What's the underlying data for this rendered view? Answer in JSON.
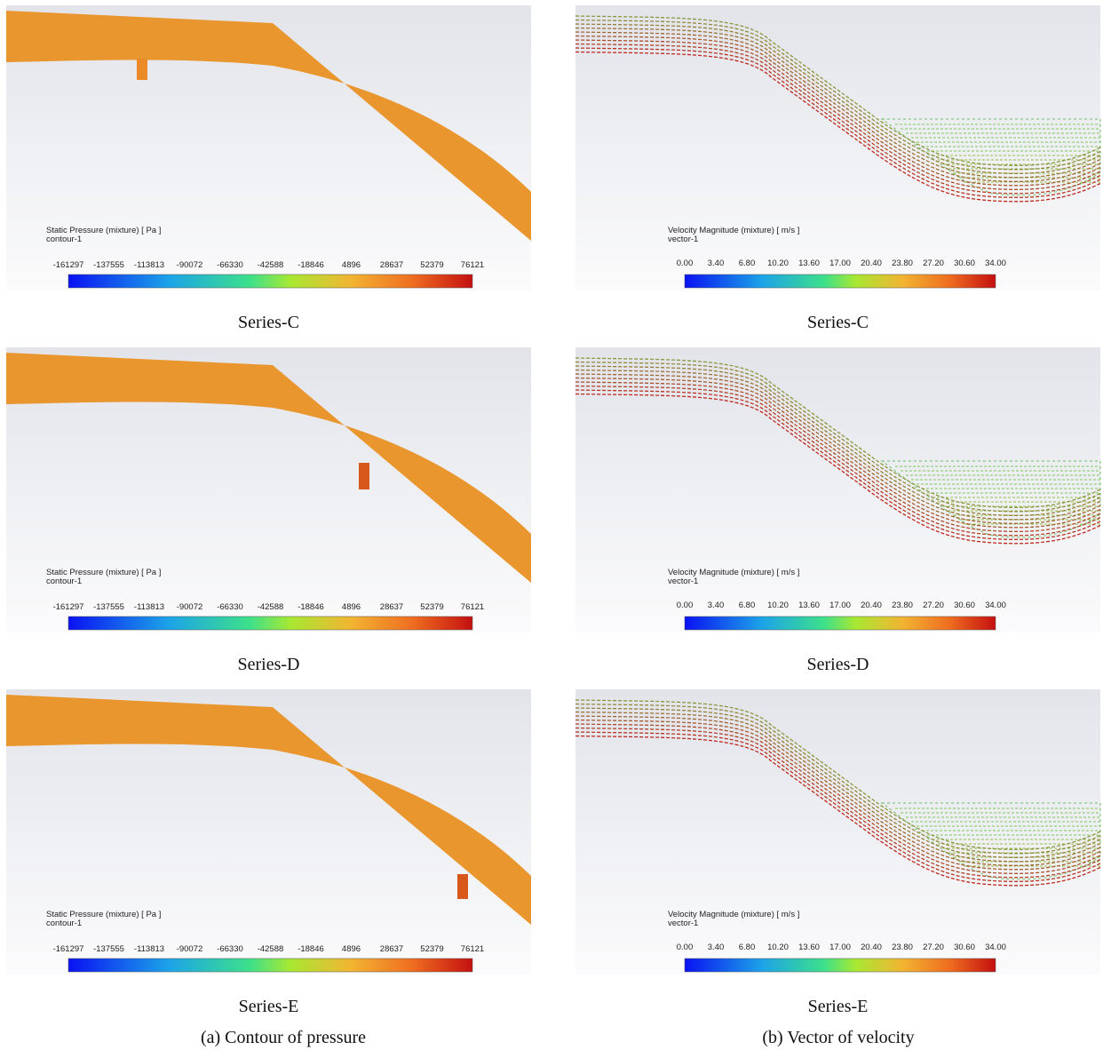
{
  "pressure_panels": [
    {
      "legend_title": "Static Pressure (mixture)  [ Pa ]",
      "legend_subtitle": "contour-1",
      "scale_labels": [
        "-161297",
        "-137555",
        "-113813",
        "-90072",
        "-66330",
        "-42588",
        "-18846",
        "4896",
        "28637",
        "52379",
        "76121"
      ],
      "caption": "Series-C"
    },
    {
      "legend_title": "Static Pressure (mixture)  [ Pa ]",
      "legend_subtitle": "contour-1",
      "scale_labels": [
        "-161297",
        "-137555",
        "-113813",
        "-90072",
        "-66330",
        "-42588",
        "-18846",
        "4896",
        "28637",
        "52379",
        "76121"
      ],
      "caption": "Series-D"
    },
    {
      "legend_title": "Static Pressure (mixture)  [ Pa ]",
      "legend_subtitle": "contour-1",
      "scale_labels": [
        "-161297",
        "-137555",
        "-113813",
        "-90072",
        "-66330",
        "-42588",
        "-18846",
        "4896",
        "28637",
        "52379",
        "76121"
      ],
      "caption": "Series-E"
    }
  ],
  "velocity_panels": [
    {
      "legend_title": "Velocity Magnitude (mixture)  [ m/s ]",
      "legend_subtitle": "vector-1",
      "scale_labels": [
        "0.00",
        "3.40",
        "6.80",
        "10.20",
        "13.60",
        "17.00",
        "20.40",
        "23.80",
        "27.20",
        "30.60",
        "34.00"
      ],
      "caption": "Series-C"
    },
    {
      "legend_title": "Velocity Magnitude (mixture)  [ m/s ]",
      "legend_subtitle": "vector-1",
      "scale_labels": [
        "0.00",
        "3.40",
        "6.80",
        "10.20",
        "13.60",
        "17.00",
        "20.40",
        "23.80",
        "27.20",
        "30.60",
        "34.00"
      ],
      "caption": "Series-D"
    },
    {
      "legend_title": "Velocity Magnitude (mixture)  [ m/s ]",
      "legend_subtitle": "vector-1",
      "scale_labels": [
        "0.00",
        "3.40",
        "6.80",
        "10.20",
        "13.60",
        "17.00",
        "20.40",
        "23.80",
        "27.20",
        "30.60",
        "34.00"
      ],
      "caption": "Series-E"
    }
  ],
  "captions": {
    "pressure": "(a) Contour of pressure",
    "velocity": "(b) Vector of velocity"
  }
}
